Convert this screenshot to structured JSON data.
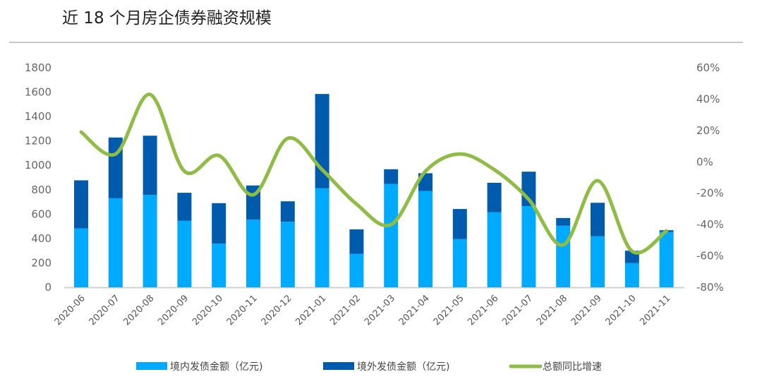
{
  "chart_data": {
    "type": "bar",
    "title": "近 18 个月房企债券融资规模",
    "categories": [
      "2020-06",
      "2020-07",
      "2020-08",
      "2020-09",
      "2020-10",
      "2020-11",
      "2020-12",
      "2021-01",
      "2021-02",
      "2021-03",
      "2021-04",
      "2021-05",
      "2021-06",
      "2021-07",
      "2021-08",
      "2021-09",
      "2021-10",
      "2021-11"
    ],
    "series": [
      {
        "name": "境内发债金额（亿元)",
        "type": "bar",
        "stack": "total",
        "color": "#00aaff",
        "values": [
          483,
          730,
          757,
          545,
          358,
          555,
          537,
          812,
          275,
          847,
          790,
          395,
          615,
          666,
          505,
          418,
          198,
          453
        ]
      },
      {
        "name": "境外发债金额（亿元)",
        "type": "bar",
        "stack": "total",
        "color": "#005bac",
        "values": [
          394,
          498,
          486,
          230,
          332,
          280,
          168,
          773,
          200,
          121,
          145,
          247,
          242,
          282,
          63,
          275,
          102,
          15
        ]
      },
      {
        "name": "总额同比增速",
        "type": "line",
        "axis": "right",
        "color": "#8fbc45",
        "values": [
          19,
          5,
          43,
          -6,
          4,
          -21,
          15,
          -5,
          -27,
          -40,
          -6,
          5,
          -5,
          -24,
          -53,
          -12,
          -57,
          -44
        ]
      }
    ],
    "ylim": [
      0,
      1800
    ],
    "yticks": [
      "0",
      "200",
      "400",
      "600",
      "800",
      "1000",
      "1200",
      "1400",
      "1600",
      "1800"
    ],
    "y2lim": [
      -80,
      60
    ],
    "y2ticks": [
      "-80%",
      "-60%",
      "-40%",
      "-20%",
      "0%",
      "20%",
      "40%",
      "60%"
    ],
    "legend": "bottom",
    "grid": false
  }
}
